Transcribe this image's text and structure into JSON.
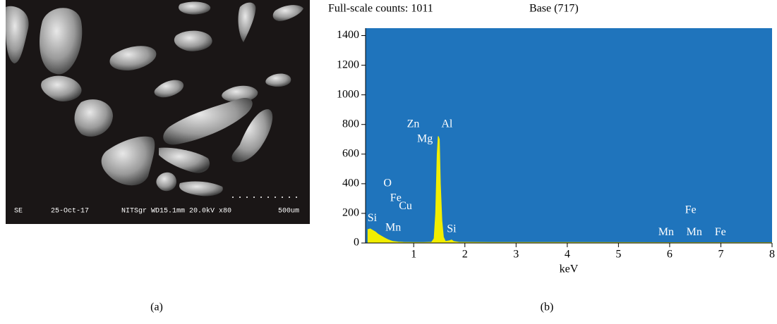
{
  "figure": {
    "panel_a": {
      "caption": "(a)",
      "info_bar": [
        "SE",
        "25-Oct-17",
        "NITSgr WD15.1mm 20.0kV x80",
        "500um"
      ]
    },
    "panel_b": {
      "caption": "(b)"
    }
  },
  "chart_data": {
    "type": "area",
    "header": [
      "Full-scale counts: 1011",
      "Base (717)"
    ],
    "xlabel": "keV",
    "xlim": [
      0.06,
      8
    ],
    "xticks": [
      1,
      2,
      3,
      4,
      5,
      6,
      7,
      8
    ],
    "ylim": [
      0,
      1450
    ],
    "yticks": [
      0,
      200,
      400,
      600,
      800,
      1000,
      1200,
      1400
    ],
    "background": "#1f74bc",
    "series": [
      {
        "color": "#f2ee00",
        "x": [
          0.1,
          0.15,
          0.2,
          0.25,
          0.3,
          0.35,
          0.4,
          0.45,
          0.5,
          0.55,
          0.6,
          0.7,
          0.8,
          1.0,
          1.2,
          1.35,
          1.4,
          1.43,
          1.46,
          1.48,
          1.5,
          1.52,
          1.55,
          1.58,
          1.62,
          1.7,
          1.74,
          1.78,
          1.9,
          2.5,
          4,
          6,
          8
        ],
        "values": [
          90,
          95,
          85,
          75,
          60,
          50,
          40,
          30,
          22,
          15,
          10,
          6,
          4,
          3,
          3,
          5,
          30,
          200,
          600,
          720,
          700,
          400,
          150,
          40,
          10,
          15,
          20,
          10,
          4,
          3,
          3,
          2,
          2
        ]
      }
    ],
    "annotations": [
      {
        "text": "Si",
        "x": 0.19,
        "y": 165
      },
      {
        "text": "O",
        "x": 0.49,
        "y": 400
      },
      {
        "text": "Fe",
        "x": 0.65,
        "y": 300
      },
      {
        "text": "Cu",
        "x": 0.84,
        "y": 245
      },
      {
        "text": "Mn",
        "x": 0.6,
        "y": 100
      },
      {
        "text": "Zn",
        "x": 0.99,
        "y": 800
      },
      {
        "text": "Al",
        "x": 1.65,
        "y": 800
      },
      {
        "text": "Mg",
        "x": 1.22,
        "y": 700
      },
      {
        "text": "Si",
        "x": 1.74,
        "y": 90
      },
      {
        "text": "Mn",
        "x": 5.93,
        "y": 70
      },
      {
        "text": "Fe",
        "x": 6.41,
        "y": 220
      },
      {
        "text": "Mn",
        "x": 6.48,
        "y": 70
      },
      {
        "text": "Fe",
        "x": 6.99,
        "y": 70
      }
    ]
  }
}
